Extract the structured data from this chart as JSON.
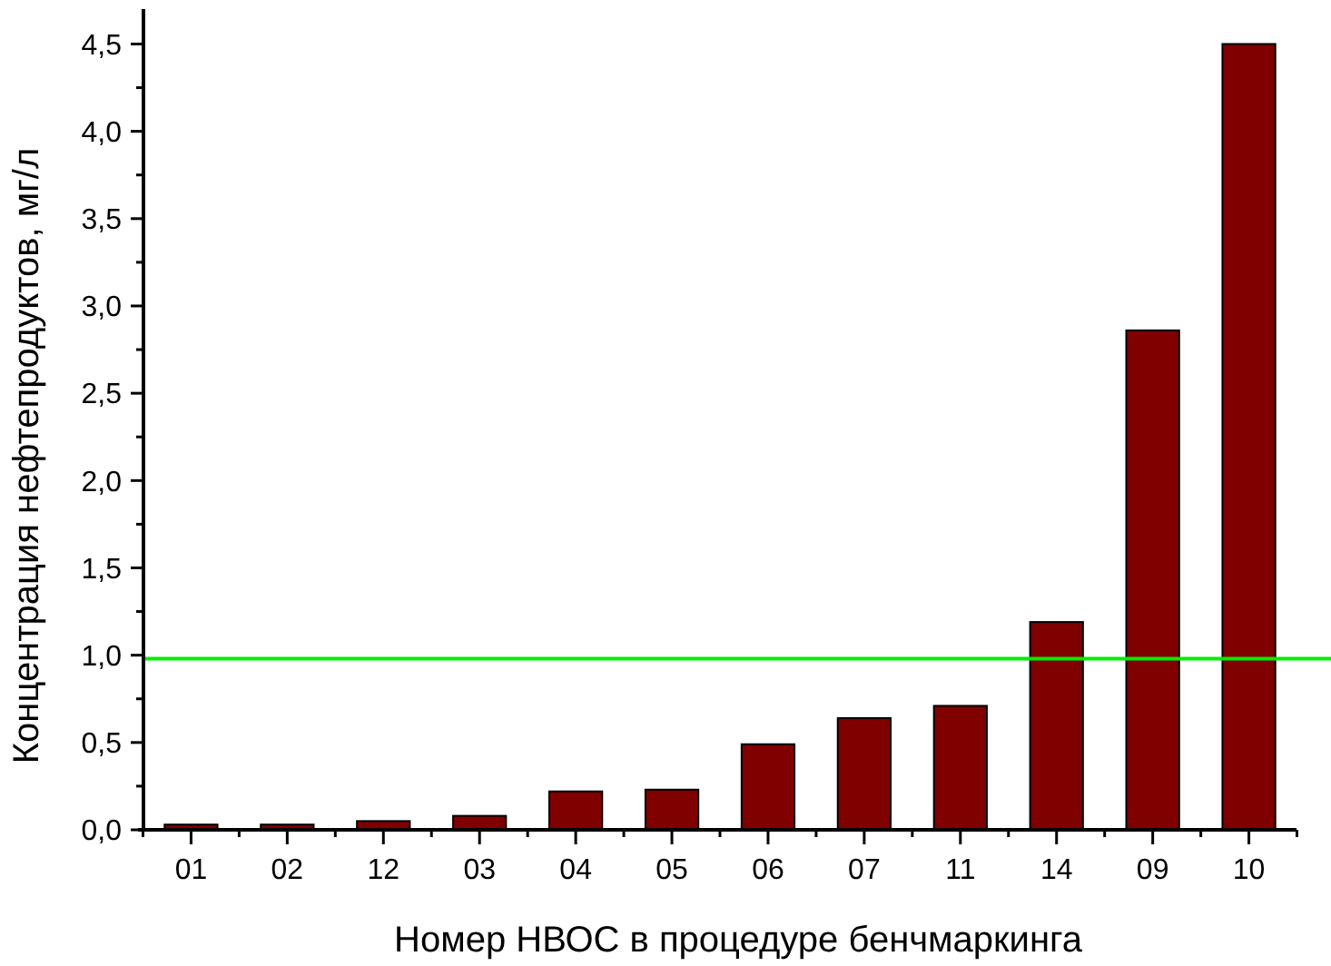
{
  "chart_data": {
    "type": "bar",
    "xlabel": "Номер НВОС в процедуре бенчмаркинга",
    "ylabel": "Концентрация нефтепродуктов, мг/л",
    "categories": [
      "01",
      "02",
      "12",
      "03",
      "04",
      "05",
      "06",
      "07",
      "11",
      "14",
      "09",
      "10"
    ],
    "values": [
      0.03,
      0.03,
      0.05,
      0.08,
      0.22,
      0.23,
      0.49,
      0.64,
      0.71,
      1.19,
      2.86,
      4.5
    ],
    "color": "#800000",
    "ylim": [
      0,
      4.7
    ],
    "yticks": [
      {
        "value": 0,
        "label": "0,0"
      },
      {
        "value": 0.25,
        "label": null
      },
      {
        "value": 0.5,
        "label": "0,5"
      },
      {
        "value": 0.75,
        "label": null
      },
      {
        "value": 1,
        "label": "1,0"
      },
      {
        "value": 1.25,
        "label": null
      },
      {
        "value": 1.5,
        "label": "1,5"
      },
      {
        "value": 1.75,
        "label": null
      },
      {
        "value": 2,
        "label": "2,0"
      },
      {
        "value": 2.25,
        "label": null
      },
      {
        "value": 2.5,
        "label": "2,5"
      },
      {
        "value": 2.75,
        "label": null
      },
      {
        "value": 3,
        "label": "3,0"
      },
      {
        "value": 3.25,
        "label": null
      },
      {
        "value": 3.5,
        "label": "3,5"
      },
      {
        "value": 3.75,
        "label": null
      },
      {
        "value": 4,
        "label": "4,0"
      },
      {
        "value": 4.25,
        "label": null
      },
      {
        "value": 4.5,
        "label": "4,5"
      }
    ],
    "ref_lines": [
      {
        "axis": "y",
        "value": 0.98,
        "color": "#00ee00"
      }
    ],
    "grid": false
  }
}
